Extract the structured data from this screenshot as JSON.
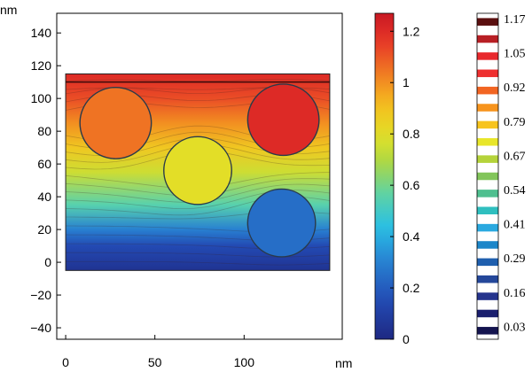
{
  "chart_data": {
    "type": "heatmap",
    "plot": {
      "x_unit_label": "nm",
      "y_unit_label": "nm",
      "xlim": [
        -5,
        155
      ],
      "ylim": [
        -47,
        152
      ],
      "x_ticks": [
        0,
        50,
        100
      ],
      "y_ticks": [
        140,
        120,
        100,
        80,
        60,
        40,
        20,
        0,
        -20,
        -40
      ],
      "domain": {
        "x": [
          0,
          148
        ],
        "y": [
          -5,
          115
        ]
      },
      "top_line_y": 110,
      "field": {
        "description_free": true,
        "gradient_stops": [
          {
            "y": -5,
            "value": 0.05
          },
          {
            "y": 10,
            "value": 0.15
          },
          {
            "y": 20,
            "value": 0.3
          },
          {
            "y": 35,
            "value": 0.55
          },
          {
            "y": 55,
            "value": 0.75
          },
          {
            "y": 70,
            "value": 0.88
          },
          {
            "y": 85,
            "value": 1.0
          },
          {
            "y": 100,
            "value": 1.12
          },
          {
            "y": 115,
            "value": 1.2
          }
        ]
      },
      "circles": [
        {
          "cx": 28,
          "cy": 85,
          "r": 20,
          "value": 1.05
        },
        {
          "cx": 122,
          "cy": 87,
          "r": 20,
          "value": 1.2
        },
        {
          "cx": 74,
          "cy": 56,
          "r": 19,
          "value": 0.8
        },
        {
          "cx": 121,
          "cy": 24,
          "r": 19,
          "value": 0.25
        }
      ]
    },
    "colorbar": {
      "range": [
        0,
        1.27
      ],
      "ticks": [
        {
          "value": 1.2,
          "label": "1.2"
        },
        {
          "value": 1.0,
          "label": "1"
        },
        {
          "value": 0.8,
          "label": "0.8"
        },
        {
          "value": 0.6,
          "label": "0.6"
        },
        {
          "value": 0.4,
          "label": "0.4"
        },
        {
          "value": 0.2,
          "label": "0.2"
        },
        {
          "value": 0.0,
          "label": "0"
        }
      ]
    },
    "contour_legend": {
      "labels": [
        "1.17",
        "1.05",
        "0.92",
        "0.79",
        "0.67",
        "0.54",
        "0.41",
        "0.29",
        "0.16",
        "0.03"
      ],
      "swatch_colors": [
        "#5a0f0f",
        "#b81f24",
        "#e8292d",
        "#ee3030",
        "#f26522",
        "#f7941d",
        "#f7c41d",
        "#e8e62a",
        "#b5d33a",
        "#82c55a",
        "#4fbf8f",
        "#2fbfbf",
        "#2aa9e0",
        "#1c86c9",
        "#1f5fae",
        "#24479a",
        "#25348d",
        "#1a1f6e",
        "#14144f"
      ]
    }
  }
}
